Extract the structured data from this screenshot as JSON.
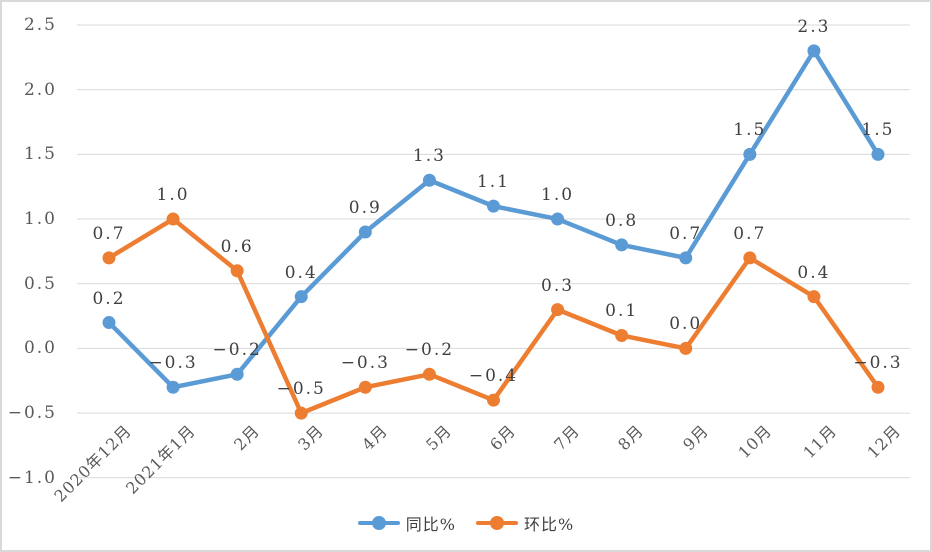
{
  "chart_data": {
    "type": "line",
    "title": "",
    "categories": [
      "2020年12月",
      "2021年1月",
      "2月",
      "3月",
      "4月",
      "5月",
      "6月",
      "7月",
      "8月",
      "9月",
      "10月",
      "11月",
      "12月"
    ],
    "series": [
      {
        "name": "同比%",
        "color": "#5B9BD5",
        "values": [
          0.2,
          -0.3,
          -0.2,
          0.4,
          0.9,
          1.3,
          1.1,
          1.0,
          0.8,
          0.7,
          1.5,
          2.3,
          1.5
        ]
      },
      {
        "name": "环比%",
        "color": "#ED7D31",
        "values": [
          0.7,
          1.0,
          0.6,
          -0.5,
          -0.3,
          -0.2,
          -0.4,
          0.3,
          0.1,
          0.0,
          0.7,
          0.4,
          -0.3
        ]
      }
    ],
    "y_axis": {
      "min": -1.0,
      "max": 2.5,
      "step": 0.5,
      "tick_labels": [
        "2.5",
        "2.0",
        "1.5",
        "1.0",
        "0.5",
        "0.0",
        "-0.5",
        "-1.0"
      ]
    },
    "xlabel": "",
    "ylabel": "",
    "grid": true,
    "data_labels": true,
    "legend_position": "bottom",
    "colors": {
      "gridline": "#D9D9D9",
      "border": "#D9D9D9",
      "tick_text": "#595959",
      "label_text": "#404040",
      "background": "#FFFFFF"
    }
  }
}
